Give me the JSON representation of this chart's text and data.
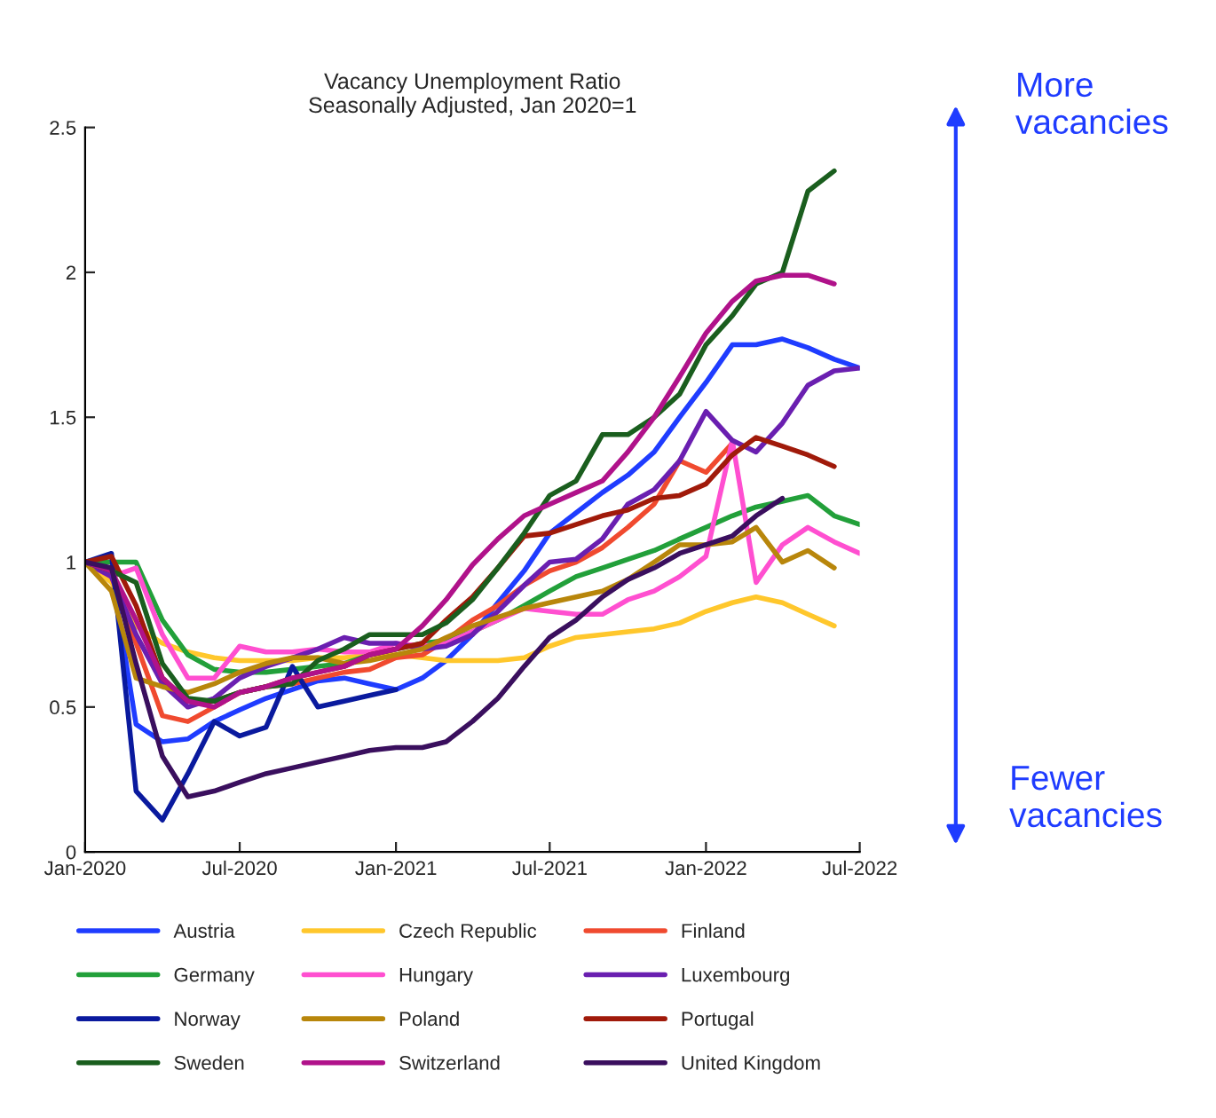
{
  "chart_data": {
    "type": "line",
    "title": "Vacancy Unemployment Ratio\nSeasonally Adjusted, Jan 2020=1",
    "x": [
      "2020-01",
      "2020-02",
      "2020-03",
      "2020-04",
      "2020-05",
      "2020-06",
      "2020-07",
      "2020-08",
      "2020-09",
      "2020-10",
      "2020-11",
      "2020-12",
      "2021-01",
      "2021-02",
      "2021-03",
      "2021-04",
      "2021-05",
      "2021-06",
      "2021-07",
      "2021-08",
      "2021-09",
      "2021-10",
      "2021-11",
      "2021-12",
      "2022-01",
      "2022-02",
      "2022-03",
      "2022-04",
      "2022-05",
      "2022-06",
      "2022-07"
    ],
    "series": [
      {
        "name": "Austria",
        "color": "#1f3cff",
        "values": [
          1,
          0.97,
          0.44,
          0.38,
          0.39,
          0.45,
          0.49,
          0.53,
          0.56,
          0.59,
          0.6,
          0.58,
          0.56,
          0.6,
          0.66,
          0.75,
          0.86,
          0.97,
          1.1,
          1.17,
          1.24,
          1.3,
          1.38,
          1.5,
          1.62,
          1.75,
          1.75,
          1.77,
          1.74,
          1.7,
          1.67
        ]
      },
      {
        "name": "Czech Republic",
        "color": "#ffc72c",
        "values": [
          1,
          0.93,
          0.78,
          0.72,
          0.69,
          0.67,
          0.66,
          0.66,
          0.66,
          0.67,
          0.67,
          0.68,
          0.68,
          0.67,
          0.66,
          0.66,
          0.66,
          0.67,
          0.71,
          0.74,
          0.75,
          0.76,
          0.77,
          0.79,
          0.83,
          0.86,
          0.88,
          0.86,
          0.82,
          0.78,
          null
        ]
      },
      {
        "name": "Finland",
        "color": "#f04a2f",
        "values": [
          1,
          0.95,
          0.72,
          0.47,
          0.45,
          0.5,
          0.55,
          0.57,
          0.58,
          0.6,
          0.62,
          0.63,
          0.67,
          0.68,
          0.73,
          0.8,
          0.85,
          0.92,
          0.97,
          1.0,
          1.05,
          1.12,
          1.2,
          1.35,
          1.31,
          1.41,
          null,
          null,
          null,
          null,
          null
        ]
      },
      {
        "name": "Germany",
        "color": "#22a03a",
        "values": [
          1,
          1.0,
          1.0,
          0.8,
          0.68,
          0.63,
          0.62,
          0.62,
          0.63,
          0.64,
          0.65,
          0.68,
          0.7,
          0.72,
          0.73,
          0.76,
          0.8,
          0.85,
          0.9,
          0.95,
          0.98,
          1.01,
          1.04,
          1.08,
          1.12,
          1.16,
          1.19,
          1.21,
          1.23,
          1.16,
          1.13
        ]
      },
      {
        "name": "Hungary",
        "color": "#ff4fd0",
        "values": [
          1,
          0.95,
          0.98,
          0.75,
          0.6,
          0.6,
          0.71,
          0.69,
          0.69,
          0.7,
          0.69,
          0.69,
          0.72,
          0.71,
          0.72,
          0.76,
          0.8,
          0.84,
          0.83,
          0.82,
          0.82,
          0.87,
          0.9,
          0.95,
          1.02,
          1.42,
          0.93,
          1.06,
          1.12,
          1.07,
          1.03
        ]
      },
      {
        "name": "Luxembourg",
        "color": "#6a1fb0",
        "values": [
          1,
          0.95,
          0.75,
          0.58,
          0.5,
          0.53,
          0.6,
          0.64,
          0.67,
          0.7,
          0.74,
          0.72,
          0.72,
          0.7,
          0.71,
          0.75,
          0.83,
          0.92,
          1.0,
          1.01,
          1.08,
          1.2,
          1.25,
          1.35,
          1.52,
          1.42,
          1.38,
          1.48,
          1.61,
          1.66,
          1.67
        ]
      },
      {
        "name": "Norway",
        "color": "#0a1a9e",
        "values": [
          1,
          1.03,
          0.21,
          0.11,
          0.27,
          0.45,
          0.4,
          0.43,
          0.64,
          0.5,
          0.52,
          0.54,
          0.56,
          null,
          null,
          null,
          null,
          null,
          null,
          null,
          null,
          null,
          null,
          null,
          null,
          null,
          null,
          null,
          null,
          null,
          null
        ]
      },
      {
        "name": "Poland",
        "color": "#b8860b",
        "values": [
          1,
          0.9,
          0.6,
          0.57,
          0.55,
          0.58,
          0.62,
          0.65,
          0.67,
          0.67,
          0.65,
          0.66,
          0.68,
          0.7,
          0.74,
          0.78,
          0.81,
          0.84,
          0.86,
          0.88,
          0.9,
          0.94,
          1.0,
          1.06,
          1.06,
          1.07,
          1.12,
          1.0,
          1.04,
          0.98,
          null
        ]
      },
      {
        "name": "Portugal",
        "color": "#a01a0a",
        "values": [
          1,
          1.02,
          0.85,
          0.6,
          0.52,
          0.52,
          0.55,
          0.57,
          0.6,
          0.62,
          0.64,
          0.68,
          0.7,
          0.72,
          0.8,
          0.88,
          0.98,
          1.09,
          1.1,
          1.13,
          1.16,
          1.18,
          1.22,
          1.23,
          1.27,
          1.37,
          1.43,
          1.4,
          1.37,
          1.33,
          null
        ]
      },
      {
        "name": "Sweden",
        "color": "#1a5e1e",
        "values": [
          1,
          0.97,
          0.93,
          0.65,
          0.53,
          0.52,
          0.55,
          0.57,
          0.58,
          0.66,
          0.7,
          0.75,
          0.75,
          0.75,
          0.79,
          0.87,
          0.98,
          1.1,
          1.23,
          1.28,
          1.44,
          1.44,
          1.5,
          1.58,
          1.75,
          1.85,
          1.96,
          2.0,
          2.28,
          2.35,
          null
        ]
      },
      {
        "name": "Switzerland",
        "color": "#b0128a",
        "values": [
          1,
          0.97,
          0.8,
          0.6,
          0.52,
          0.5,
          0.55,
          0.57,
          0.6,
          0.62,
          0.64,
          0.68,
          0.7,
          0.78,
          0.87,
          0.99,
          1.08,
          1.16,
          1.2,
          1.24,
          1.28,
          1.38,
          1.5,
          1.64,
          1.79,
          1.9,
          1.97,
          1.99,
          1.99,
          1.96,
          null
        ]
      },
      {
        "name": "United Kingdom",
        "color": "#3a0f5e",
        "values": [
          1,
          0.98,
          0.65,
          0.33,
          0.19,
          0.21,
          0.24,
          0.27,
          0.29,
          0.31,
          0.33,
          0.35,
          0.36,
          0.36,
          0.38,
          0.45,
          0.53,
          0.64,
          0.74,
          0.8,
          0.88,
          0.94,
          0.98,
          1.03,
          1.06,
          1.09,
          1.16,
          1.22,
          null,
          null,
          null
        ]
      }
    ],
    "xlim": [
      "2020-01",
      "2022-07"
    ],
    "xticks": [
      {
        "value": "2020-01",
        "label": "Jan-2020"
      },
      {
        "value": "2020-07",
        "label": "Jul-2020"
      },
      {
        "value": "2021-01",
        "label": "Jan-2021"
      },
      {
        "value": "2021-07",
        "label": "Jul-2021"
      },
      {
        "value": "2022-01",
        "label": "Jan-2022"
      },
      {
        "value": "2022-07",
        "label": "Jul-2022"
      }
    ],
    "ylim": [
      0,
      2.5
    ],
    "yticks": [
      0,
      0.5,
      1,
      1.5,
      2,
      2.5
    ],
    "annotations": [
      "More\nvacancies",
      "Fewer\nvacancies"
    ],
    "legend": "bottom",
    "grid": false,
    "line_style": "solid"
  }
}
